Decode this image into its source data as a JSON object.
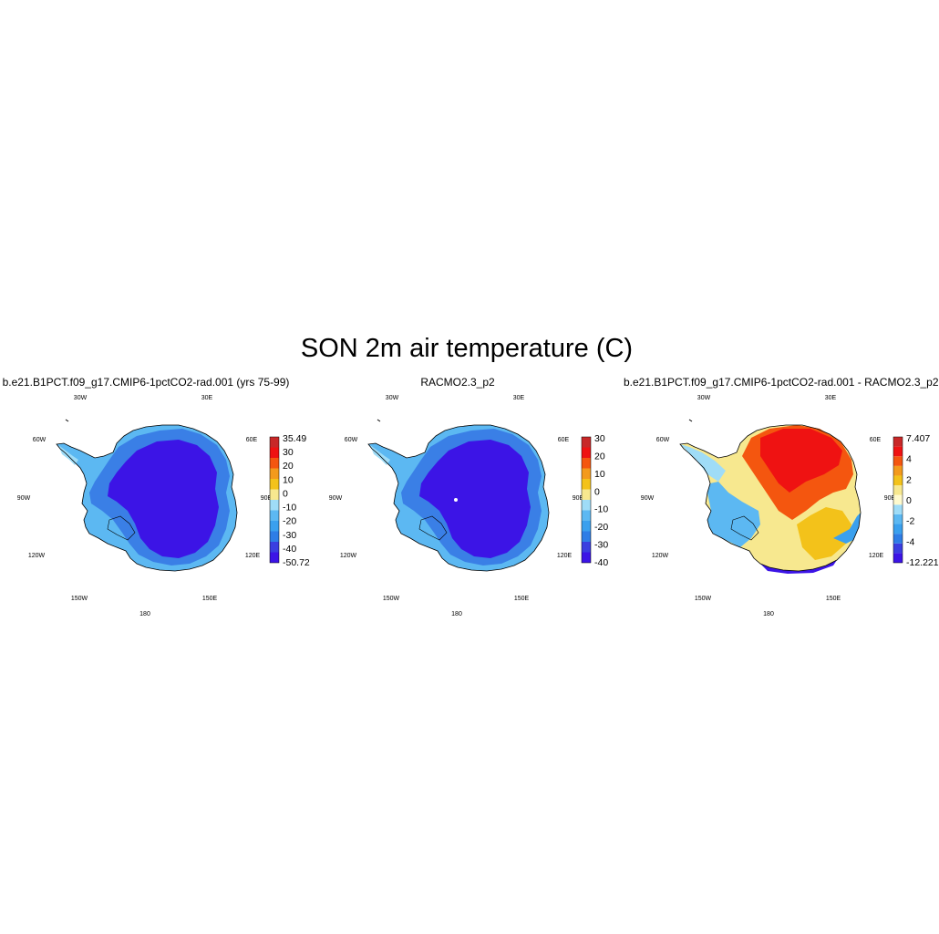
{
  "figure": {
    "title": "SON 2m air temperature (C)"
  },
  "panels": [
    {
      "title": "b.e21.B1PCT.f09_g17.CMIP6-1pctCO2-rad.001 (yrs 75-99)",
      "field": "absolute",
      "colorbar": {
        "colors": [
          "#3c14e6",
          "#3a3ee0",
          "#2e7de6",
          "#3aa0ee",
          "#5cb8f2",
          "#9fdcf7",
          "#f7e88f",
          "#f3c21a",
          "#f39a1c",
          "#f4560f",
          "#ef1212",
          "#c82828"
        ],
        "labels": [
          "35.49",
          "30",
          "20",
          "10",
          "0",
          "-10",
          "-20",
          "-30",
          "-40",
          "-50.72"
        ]
      }
    },
    {
      "title": "RACMO2.3_p2",
      "field": "absolute",
      "colorbar": {
        "colors": [
          "#3c14e6",
          "#3a3ee0",
          "#2e7de6",
          "#3aa0ee",
          "#5cb8f2",
          "#9fdcf7",
          "#f7e88f",
          "#f3c21a",
          "#f39a1c",
          "#f4560f",
          "#ef1212",
          "#c82828"
        ],
        "labels": [
          "30",
          "20",
          "10",
          "0",
          "-10",
          "-20",
          "-30",
          "-40"
        ]
      }
    },
    {
      "title": "b.e21.B1PCT.f09_g17.CMIP6-1pctCO2-rad.001 - RACMO2.3_p2",
      "field": "difference",
      "colorbar": {
        "colors": [
          "#3c14e6",
          "#3a3ee0",
          "#2e7de6",
          "#3aa0ee",
          "#5cb8f2",
          "#9fdcf7",
          "#fffacd",
          "#f7e88f",
          "#f3c21a",
          "#f39a1c",
          "#f4560f",
          "#ef1212",
          "#c82828"
        ],
        "labels": [
          "7.407",
          "4",
          "2",
          "0",
          "-2",
          "-4",
          "-12.221"
        ]
      }
    }
  ],
  "longitude_labels": [
    "30W",
    "30E",
    "60W",
    "60E",
    "90W",
    "90E",
    "120W",
    "120E",
    "150W",
    "150E",
    "180"
  ]
}
